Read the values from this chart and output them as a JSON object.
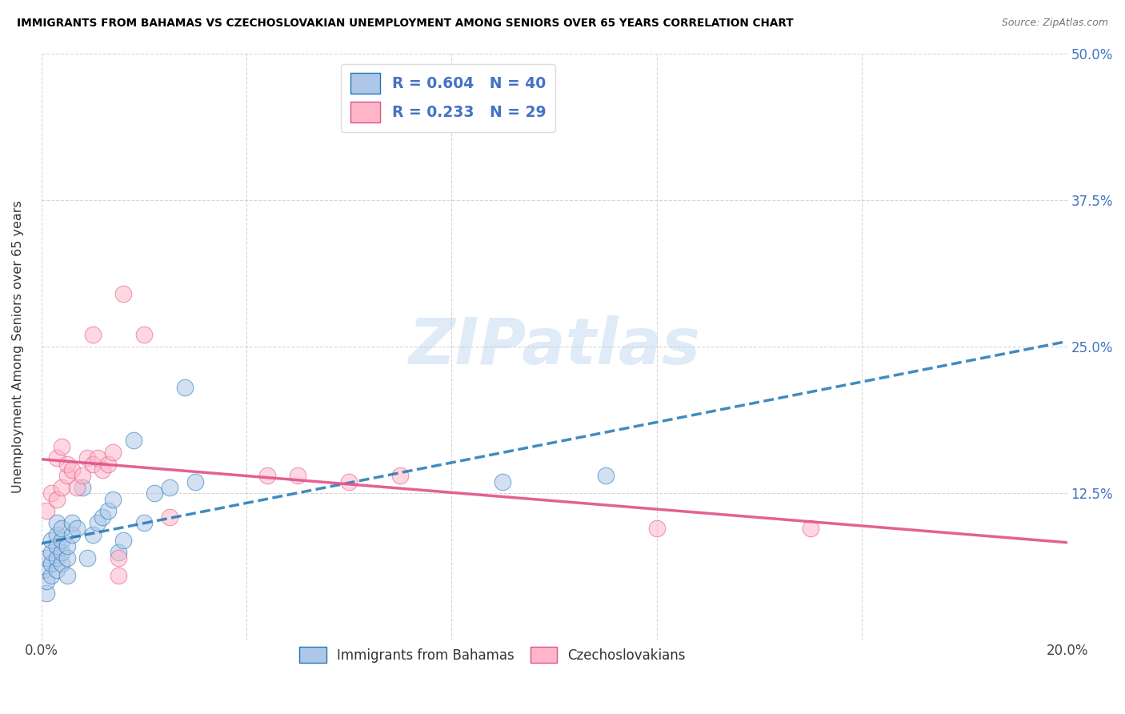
{
  "title": "IMMIGRANTS FROM BAHAMAS VS CZECHOSLOVAKIAN UNEMPLOYMENT AMONG SENIORS OVER 65 YEARS CORRELATION CHART",
  "source": "Source: ZipAtlas.com",
  "ylabel": "Unemployment Among Seniors over 65 years",
  "xlim": [
    0.0,
    0.2
  ],
  "ylim": [
    0.0,
    0.5
  ],
  "xtick_positions": [
    0.0,
    0.04,
    0.08,
    0.12,
    0.16,
    0.2
  ],
  "xtick_labels": [
    "0.0%",
    "",
    "",
    "",
    "",
    "20.0%"
  ],
  "ytick_positions": [
    0.0,
    0.125,
    0.25,
    0.375,
    0.5
  ],
  "ytick_labels_right": [
    "",
    "12.5%",
    "25.0%",
    "37.5%",
    "50.0%"
  ],
  "blue_face_color": "#aec7e8",
  "blue_edge_color": "#1f77b4",
  "blue_line_color": "#1f77b4",
  "pink_face_color": "#ffb6c8",
  "pink_edge_color": "#e0508a",
  "pink_line_color": "#e0508a",
  "right_axis_color": "#4472c4",
  "watermark_text": "ZIPatlas",
  "watermark_color": "#b8d4ee",
  "legend1_label1": "R = 0.604   N = 40",
  "legend1_label2": "R = 0.233   N = 29",
  "legend2_label1": "Immigrants from Bahamas",
  "legend2_label2": "Czechoslovakians",
  "blue_x": [
    0.0005,
    0.001,
    0.001,
    0.001,
    0.002,
    0.002,
    0.002,
    0.002,
    0.003,
    0.003,
    0.003,
    0.003,
    0.003,
    0.004,
    0.004,
    0.004,
    0.004,
    0.005,
    0.005,
    0.005,
    0.006,
    0.006,
    0.007,
    0.008,
    0.009,
    0.01,
    0.011,
    0.012,
    0.013,
    0.014,
    0.015,
    0.016,
    0.018,
    0.02,
    0.022,
    0.025,
    0.028,
    0.09,
    0.11,
    0.03
  ],
  "blue_y": [
    0.06,
    0.04,
    0.05,
    0.07,
    0.055,
    0.065,
    0.075,
    0.085,
    0.06,
    0.07,
    0.08,
    0.09,
    0.1,
    0.065,
    0.075,
    0.085,
    0.095,
    0.055,
    0.07,
    0.08,
    0.09,
    0.1,
    0.095,
    0.13,
    0.07,
    0.09,
    0.1,
    0.105,
    0.11,
    0.12,
    0.075,
    0.085,
    0.17,
    0.1,
    0.125,
    0.13,
    0.215,
    0.135,
    0.14,
    0.135
  ],
  "pink_x": [
    0.001,
    0.002,
    0.003,
    0.003,
    0.004,
    0.004,
    0.005,
    0.005,
    0.006,
    0.007,
    0.008,
    0.009,
    0.01,
    0.011,
    0.012,
    0.013,
    0.014,
    0.015,
    0.016,
    0.044,
    0.05,
    0.06,
    0.07,
    0.12,
    0.15,
    0.01,
    0.015,
    0.02,
    0.025
  ],
  "pink_y": [
    0.11,
    0.125,
    0.12,
    0.155,
    0.13,
    0.165,
    0.14,
    0.15,
    0.145,
    0.13,
    0.14,
    0.155,
    0.15,
    0.155,
    0.145,
    0.15,
    0.16,
    0.055,
    0.295,
    0.14,
    0.14,
    0.135,
    0.14,
    0.095,
    0.095,
    0.26,
    0.07,
    0.26,
    0.105
  ]
}
